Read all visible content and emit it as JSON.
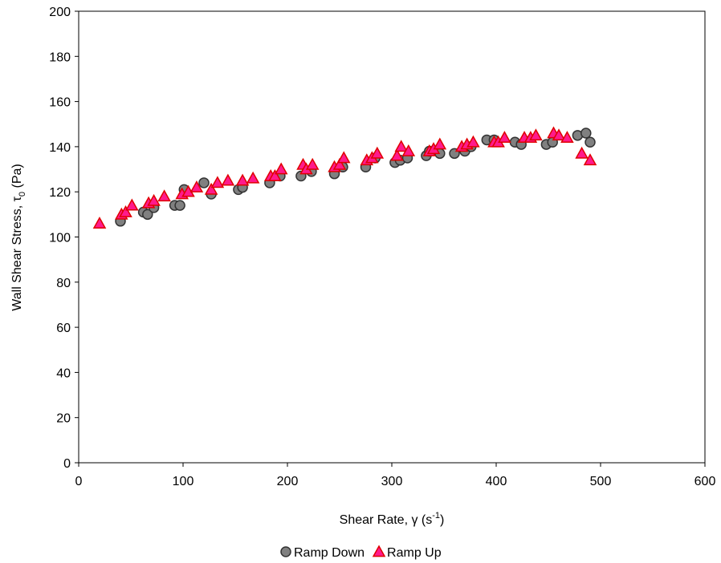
{
  "chart_data": {
    "type": "scatter",
    "x_label": {
      "text": "Shear Rate, γ (s",
      "superscript": "-1",
      "suffix": ")"
    },
    "y_label": {
      "text": "Wall Shear Stress, τ",
      "subscript": "0",
      "suffix": " (Pa)"
    },
    "xlim": [
      0,
      600
    ],
    "xticks": [
      0,
      100,
      200,
      300,
      400,
      500,
      600
    ],
    "ylim": [
      0,
      200
    ],
    "yticks": [
      0,
      20,
      40,
      60,
      80,
      100,
      120,
      140,
      160,
      180,
      200
    ],
    "legend": "bottom",
    "series": [
      {
        "name": "Ramp Down",
        "marker": "circle",
        "color": "#808080",
        "x": [
          40,
          62,
          66,
          72,
          92,
          97,
          101,
          120,
          127,
          153,
          157,
          183,
          193,
          213,
          223,
          245,
          253,
          275,
          284,
          303,
          308,
          315,
          333,
          336,
          346,
          360,
          370,
          376,
          391,
          398,
          418,
          424,
          448,
          454,
          478,
          486,
          490
        ],
        "values": [
          107,
          111,
          110,
          113,
          114,
          114,
          121,
          124,
          119,
          121,
          122,
          124,
          127,
          127,
          129,
          128,
          131,
          131,
          135,
          133,
          134,
          135,
          136,
          138,
          137,
          137,
          138,
          140,
          143,
          143,
          142,
          141,
          141,
          142,
          145,
          146,
          142
        ]
      },
      {
        "name": "Ramp Up",
        "marker": "triangle",
        "color": "#ff1a8c",
        "x": [
          20,
          41,
          45,
          51,
          67,
          72,
          82,
          99,
          105,
          113,
          127,
          133,
          143,
          157,
          167,
          184,
          188,
          194,
          215,
          218,
          224,
          245,
          250,
          254,
          276,
          281,
          286,
          305,
          309,
          316,
          336,
          340,
          346,
          367,
          372,
          378,
          398,
          402,
          408,
          427,
          433,
          438,
          455,
          460,
          468,
          482,
          490
        ],
        "values": [
          106,
          110,
          111,
          114,
          115,
          116,
          118,
          119,
          120,
          122,
          121,
          124,
          125,
          125,
          126,
          127,
          127,
          130,
          132,
          130,
          132,
          131,
          132,
          135,
          134,
          135,
          137,
          136,
          140,
          138,
          138,
          139,
          141,
          140,
          141,
          142,
          142,
          142,
          144,
          144,
          144,
          145,
          146,
          145,
          144,
          137,
          134
        ]
      }
    ]
  }
}
